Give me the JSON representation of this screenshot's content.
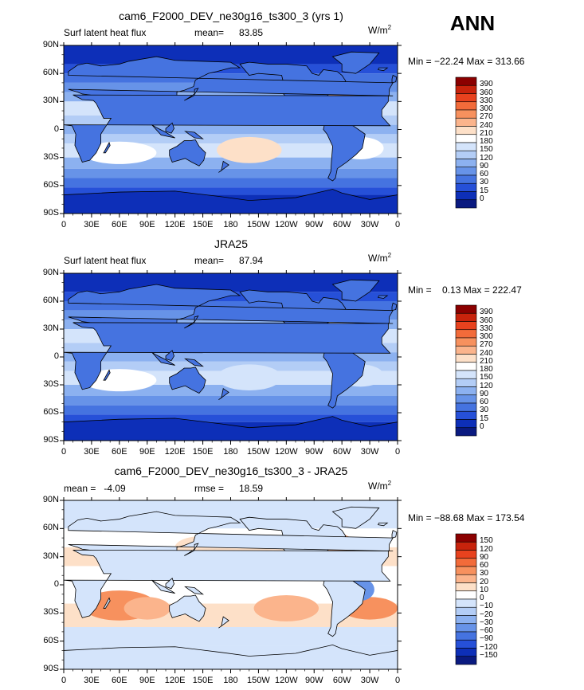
{
  "season": "ANN",
  "units": {
    "base": "W/m",
    "exp": "2"
  },
  "lon_ticks": [
    "0",
    "30E",
    "60E",
    "90E",
    "120E",
    "150E",
    "180",
    "150W",
    "120W",
    "90W",
    "60W",
    "30W",
    "0"
  ],
  "lat_ticks": [
    "90N",
    "60N",
    "30N",
    "0",
    "30S",
    "60S",
    "90S"
  ],
  "panels": [
    {
      "title": "cam6_F2000_DEV_ne30g16_ts300_3 (yrs 1)",
      "left_label": "Surf latent heat flux",
      "stat_label": "mean=",
      "stat_value": "83.85",
      "minmax": "Min = −22.24 Max = 313.66",
      "colorbar_labels": [
        "390",
        "360",
        "330",
        "300",
        "270",
        "240",
        "210",
        "180",
        "150",
        "120",
        "90",
        "60",
        "30",
        "15",
        "0"
      ],
      "colorbar_colors": [
        "#8b0000",
        "#c8230c",
        "#e8421e",
        "#f26b3a",
        "#f7915e",
        "#fbb48c",
        "#fde0c8",
        "#ffffff",
        "#d4e4fb",
        "#b3cdf6",
        "#8cb1f0",
        "#6793e8",
        "#4573e0",
        "#2650d8",
        "#0d2fb8",
        "#0a1a80"
      ]
    },
    {
      "title": "JRA25",
      "left_label": "Surf latent heat flux",
      "stat_label": "mean=",
      "stat_value": "87.94",
      "minmax": "Min =    0.13 Max = 222.47",
      "colorbar_labels": [
        "390",
        "360",
        "330",
        "300",
        "270",
        "240",
        "210",
        "180",
        "150",
        "120",
        "90",
        "60",
        "30",
        "15",
        "0"
      ],
      "colorbar_colors": [
        "#8b0000",
        "#c8230c",
        "#e8421e",
        "#f26b3a",
        "#f7915e",
        "#fbb48c",
        "#fde0c8",
        "#ffffff",
        "#d4e4fb",
        "#b3cdf6",
        "#8cb1f0",
        "#6793e8",
        "#4573e0",
        "#2650d8",
        "#0d2fb8",
        "#0a1a80"
      ]
    },
    {
      "title": "cam6_F2000_DEV_ne30g16_ts300_3 - JRA25",
      "left_label": "mean =   -4.09",
      "stat_label": "rmse =",
      "stat_value": "18.59",
      "minmax": "Min = −88.68 Max = 173.54",
      "colorbar_labels": [
        "150",
        "120",
        "90",
        "60",
        "30",
        "20",
        "10",
        "0",
        "−10",
        "−20",
        "−30",
        "−60",
        "−90",
        "−120",
        "−150"
      ],
      "colorbar_colors": [
        "#8b0000",
        "#c8230c",
        "#e8421e",
        "#f26b3a",
        "#f7915e",
        "#fbb48c",
        "#fde0c8",
        "#ffffff",
        "#d4e4fb",
        "#b3cdf6",
        "#8cb1f0",
        "#6793e8",
        "#4573e0",
        "#2650d8",
        "#0d2fb8",
        "#0a1a80"
      ]
    }
  ]
}
